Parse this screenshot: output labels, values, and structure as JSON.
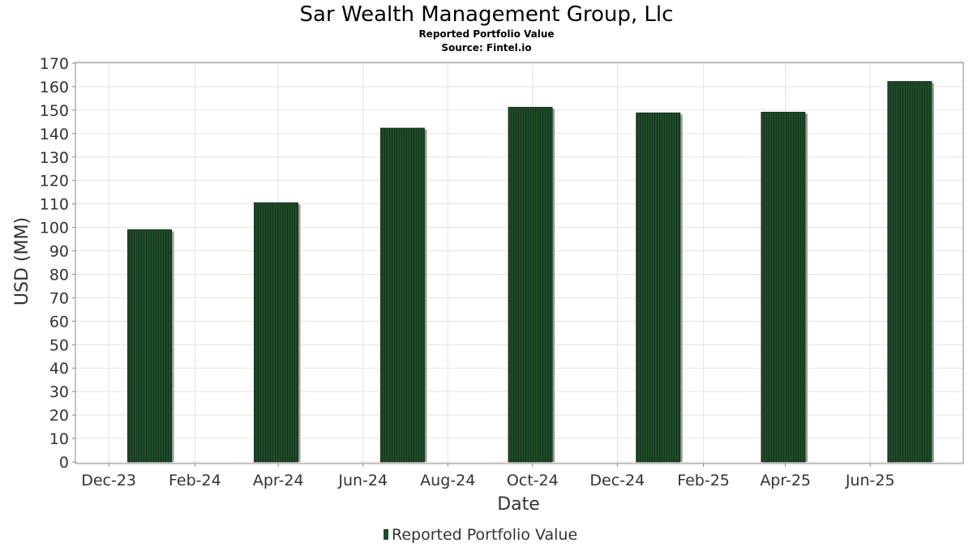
{
  "chart_data": {
    "type": "bar",
    "title": "Sar Wealth Management Group, Llc",
    "subtitle": "Reported Portfolio Value",
    "source": "Source: Fintel.io",
    "xlabel": "Date",
    "ylabel": "USD (MM)",
    "ylim": [
      0,
      170
    ],
    "y_ticks": [
      0,
      10,
      20,
      30,
      40,
      50,
      60,
      70,
      80,
      90,
      100,
      110,
      120,
      130,
      140,
      150,
      160,
      170
    ],
    "x_range": [
      "2023-11-07",
      "2025-08-07"
    ],
    "x_ticks": [
      {
        "label": "Dec-23",
        "date": "2023-12-01"
      },
      {
        "label": "Feb-24",
        "date": "2024-02-01"
      },
      {
        "label": "Apr-24",
        "date": "2024-04-01"
      },
      {
        "label": "Jun-24",
        "date": "2024-06-01"
      },
      {
        "label": "Aug-24",
        "date": "2024-08-01"
      },
      {
        "label": "Oct-24",
        "date": "2024-10-01"
      },
      {
        "label": "Dec-24",
        "date": "2024-12-01"
      },
      {
        "label": "Feb-25",
        "date": "2025-02-01"
      },
      {
        "label": "Apr-25",
        "date": "2025-04-01"
      },
      {
        "label": "Jun-25",
        "date": "2025-06-01"
      }
    ],
    "grid": true,
    "legend_position": "bottom-center",
    "series": [
      {
        "name": "Reported Portfolio Value",
        "color": "#1f4a28",
        "points": [
          {
            "date": "2023-12-31",
            "value": 99.0
          },
          {
            "date": "2024-03-31",
            "value": 110.5
          },
          {
            "date": "2024-06-30",
            "value": 142.3
          },
          {
            "date": "2024-09-30",
            "value": 151.2
          },
          {
            "date": "2024-12-31",
            "value": 148.8
          },
          {
            "date": "2025-03-31",
            "value": 149.1
          },
          {
            "date": "2025-06-30",
            "value": 162.2
          }
        ]
      }
    ]
  }
}
